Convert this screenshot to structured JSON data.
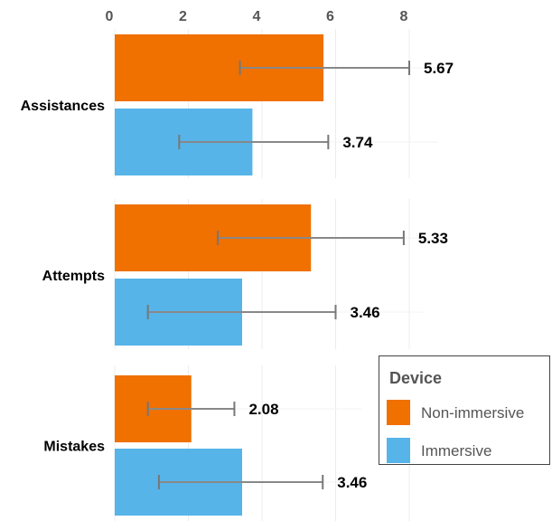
{
  "chart_data": {
    "type": "bar",
    "orientation": "horizontal",
    "title": "",
    "xlabel": "",
    "ylabel": "",
    "xlim": [
      0,
      8
    ],
    "x_ticks": [
      0,
      2,
      4,
      6,
      8
    ],
    "x_tick_labels": [
      "0",
      "2",
      "4",
      "6",
      "8"
    ],
    "grid": true,
    "categories": [
      "Assistances",
      "Attempts",
      "Mistakes"
    ],
    "series": [
      {
        "name": "Non-immersive",
        "color": "#F07000",
        "values": [
          5.67,
          5.33,
          2.08
        ],
        "value_labels": [
          "5.67",
          "5.33",
          "2.08"
        ],
        "error_low": [
          3.4,
          2.8,
          0.9
        ],
        "error_high": [
          8.0,
          7.85,
          3.25
        ]
      },
      {
        "name": "Immersive",
        "color": "#56B4E9",
        "values": [
          3.74,
          3.46,
          3.46
        ],
        "value_labels": [
          "3.74",
          "3.46",
          "3.46"
        ],
        "error_low": [
          1.75,
          0.9,
          1.2
        ],
        "error_high": [
          5.8,
          6.0,
          5.65
        ]
      }
    ],
    "legend": {
      "title": "Device",
      "position": "bottom-right",
      "entries": [
        "Non-immersive",
        "Immersive"
      ]
    }
  }
}
